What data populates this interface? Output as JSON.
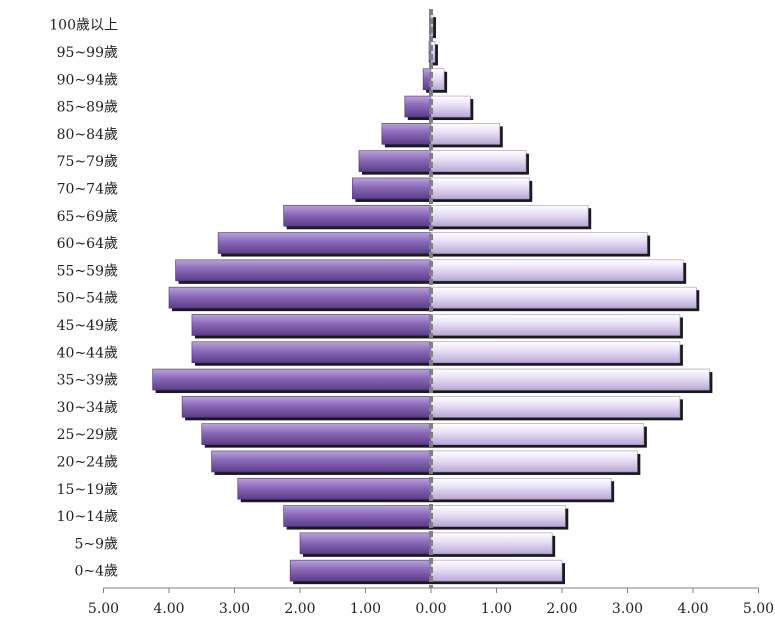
{
  "chart_data": {
    "type": "bar",
    "orientation": "horizontal",
    "layout": "population-pyramid",
    "categories": [
      "0~4歲",
      "5~9歲",
      "10~14歲",
      "15~19歲",
      "20~24歲",
      "25~29歲",
      "30~34歲",
      "35~39歲",
      "40~44歲",
      "45~49歲",
      "50~54歲",
      "55~59歲",
      "60~64歲",
      "65~69歲",
      "70~74歲",
      "75~79歲",
      "80~84歲",
      "85~89歲",
      "90~94歲",
      "95~99歲",
      "100歲以上"
    ],
    "series": [
      {
        "side": "left",
        "color": "#7b5aa6",
        "values": [
          2.15,
          2.0,
          2.25,
          2.95,
          3.35,
          3.5,
          3.8,
          4.25,
          3.65,
          3.65,
          4.0,
          3.9,
          3.25,
          2.25,
          1.2,
          1.1,
          0.75,
          0.4,
          0.12,
          0.03,
          0.02
        ]
      },
      {
        "side": "right",
        "color": "#e2d9f2",
        "values": [
          2.0,
          1.85,
          2.05,
          2.75,
          3.15,
          3.25,
          3.8,
          4.25,
          3.8,
          3.8,
          4.05,
          3.85,
          3.3,
          2.4,
          1.5,
          1.45,
          1.05,
          0.6,
          0.2,
          0.06,
          0.03
        ]
      }
    ],
    "xticks": [
      "5.00",
      "4.00",
      "3.00",
      "2.00",
      "1.00",
      "0.00",
      "1.00",
      "2.00",
      "3.00",
      "4.00",
      "5.00"
    ],
    "xlim": [
      -5,
      5
    ],
    "xlabel": "",
    "ylabel": "",
    "title": ""
  }
}
